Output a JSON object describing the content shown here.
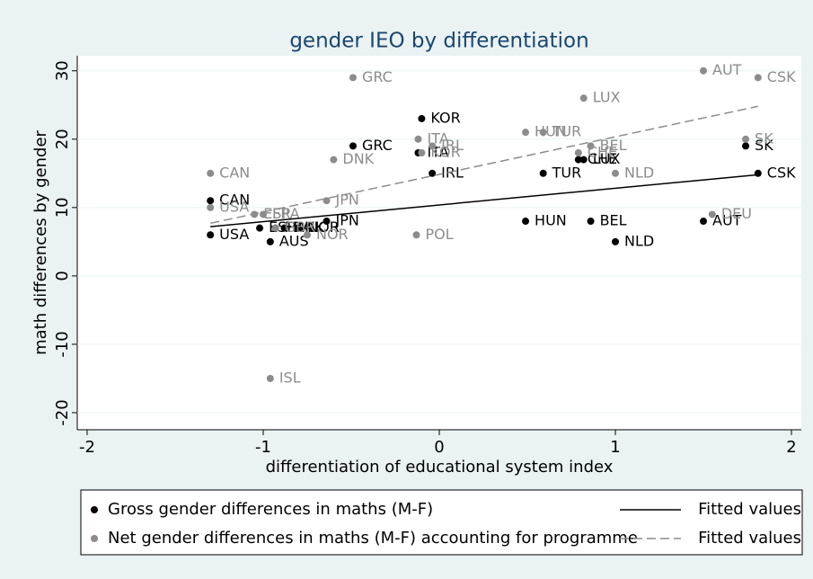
{
  "chart_data": {
    "type": "scatter",
    "title": "gender IEO by differentiation",
    "x_label": "differentiation of educational system index",
    "y_label": "math differences by gender",
    "xlim": [
      -2.056,
      2.056
    ],
    "ylim": [
      -22.5,
      32.2
    ],
    "xticks": [
      -2,
      -1,
      0,
      1,
      2
    ],
    "yticks": [
      -20,
      -10,
      0,
      10,
      20,
      30
    ],
    "grid": true,
    "series": [
      {
        "name": "Gross gender differences in maths (M-F)",
        "color": "#000000",
        "kind": "dot",
        "x": [
          -1.3,
          -1.3,
          -0.96,
          -0.64,
          -0.49,
          -0.1,
          -0.12,
          -0.04,
          0.59,
          0.49,
          0.86,
          1.0,
          0.79,
          0.82,
          1.5,
          1.74,
          1.81,
          -1.02,
          -0.93,
          -0.88,
          -0.8
        ],
        "values": [
          11,
          6,
          5,
          8,
          19,
          23,
          18,
          15,
          15,
          8,
          8,
          5,
          17,
          17,
          8,
          19,
          15,
          7,
          7,
          7,
          7
        ],
        "labels": [
          "CAN",
          "USA",
          "AUS",
          "JPN",
          "GRC",
          "KOR",
          "ITA",
          "IRL",
          "TUR",
          "HUN",
          "BEL",
          "NLD",
          "CHE",
          "LUX",
          "AUT",
          "SK",
          "CSK",
          "ESP",
          "FRA",
          "DNK",
          "NOR"
        ]
      },
      {
        "name": "Net gender differences in maths (M-F) accounting for programme",
        "color": "#8c8c8c",
        "kind": "dot",
        "x": [
          -0.49,
          1.5,
          1.81,
          0.82,
          0.49,
          0.59,
          -0.12,
          -0.04,
          -0.13,
          0.86,
          0.79,
          1.74,
          1.0,
          -1.3,
          -0.6,
          -0.64,
          -1.3,
          -1.05,
          -1.0,
          -0.93,
          -0.75,
          1.55,
          -0.96,
          -0.1
        ],
        "values": [
          29,
          30,
          29,
          26,
          21,
          21,
          20,
          19,
          6,
          19,
          18,
          20,
          15,
          15,
          17,
          11,
          10,
          9,
          9,
          7,
          6,
          9,
          -15,
          18
        ],
        "labels": [
          "GRC",
          "AUT",
          "CSK",
          "LUX",
          "HUN",
          "TUR",
          "ITA",
          "IRL",
          "POL",
          "BEL",
          "CHE",
          "SK",
          "NLD",
          "CAN",
          "DNK",
          "JPN",
          "USA",
          "ESP",
          "FRA",
          "GBR",
          "NOR",
          "DEU",
          "ISL",
          "KOR"
        ]
      },
      {
        "name": "Fitted values",
        "color": "#000000",
        "kind": "line",
        "style": "solid",
        "x": [
          -1.3,
          1.81
        ],
        "values": [
          7.2,
          14.8
        ]
      },
      {
        "name": "Fitted values",
        "color": "#8c8c8c",
        "kind": "line",
        "style": "dashed",
        "x": [
          -1.3,
          1.81
        ],
        "values": [
          7.7,
          24.8
        ]
      }
    ]
  }
}
